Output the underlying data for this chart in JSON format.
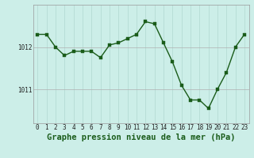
{
  "hours": [
    0,
    1,
    2,
    3,
    4,
    5,
    6,
    7,
    8,
    9,
    10,
    11,
    12,
    13,
    14,
    15,
    16,
    17,
    18,
    19,
    20,
    21,
    22,
    23
  ],
  "pressure": [
    1012.3,
    1012.3,
    1012.0,
    1011.8,
    1011.9,
    1011.9,
    1011.9,
    1011.75,
    1012.05,
    1012.1,
    1012.2,
    1012.3,
    1012.6,
    1012.55,
    1012.1,
    1011.65,
    1011.1,
    1010.75,
    1010.75,
    1010.55,
    1011.0,
    1011.4,
    1012.0,
    1012.3
  ],
  "bg_color": "#cceee8",
  "line_color": "#1a5c1a",
  "marker_color": "#1a5c1a",
  "grid_color_x": "#b0d8d0",
  "grid_color_y": "#b0b0b0",
  "title": "Graphe pression niveau de la mer (hPa)",
  "yticks": [
    1011,
    1012
  ],
  "ylim": [
    1010.2,
    1013.0
  ],
  "xlim": [
    -0.5,
    23.5
  ],
  "xticks": [
    0,
    1,
    2,
    3,
    4,
    5,
    6,
    7,
    8,
    9,
    10,
    11,
    12,
    13,
    14,
    15,
    16,
    17,
    18,
    19,
    20,
    21,
    22,
    23
  ],
  "title_fontsize": 7.5,
  "tick_fontsize": 5.5,
  "line_width": 1.0,
  "marker_size": 2.5
}
